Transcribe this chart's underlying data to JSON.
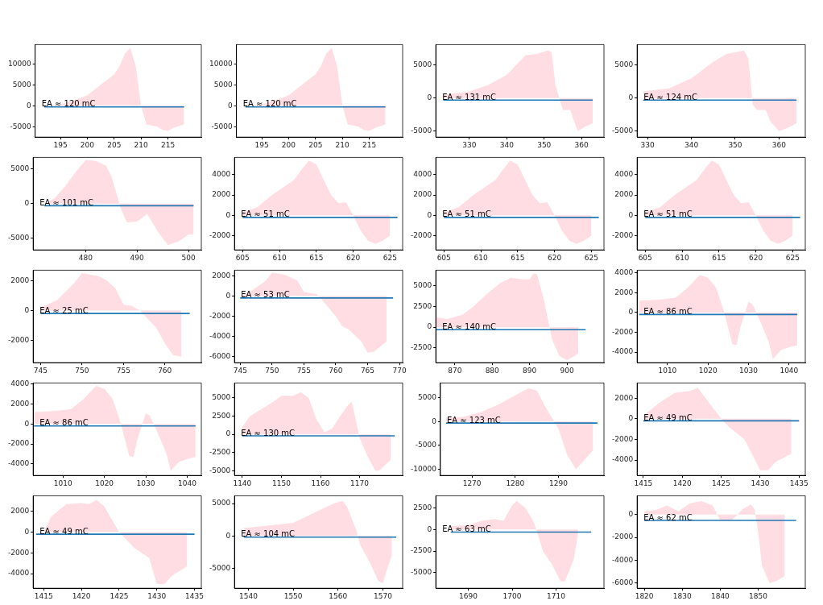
{
  "chart_data": [
    {
      "type": "area",
      "annotations": [
        "EA ≈ 120 mC"
      ],
      "xlim": [
        190.3,
        221.2
      ],
      "ylim": [
        -7500,
        14600
      ],
      "xticks": [
        195,
        200,
        205,
        210,
        215
      ],
      "yticks": [
        -5000,
        0,
        5000,
        10000
      ],
      "series": [
        {
          "type": "area",
          "color": "#ffdde2",
          "x": [
            192,
            195,
            198,
            200,
            202,
            204,
            205,
            206,
            207,
            208,
            209,
            210,
            211,
            212,
            213,
            214,
            215,
            216,
            218
          ],
          "values": [
            0,
            300,
            1500,
            2500,
            4500,
            6500,
            7500,
            9500,
            12500,
            13800,
            9500,
            0,
            -4500,
            -4700,
            -5000,
            -5800,
            -6000,
            -5300,
            -4500
          ]
        },
        {
          "type": "line",
          "color": "#1f77b4",
          "x": [
            192,
            218
          ],
          "values": [
            -300,
            -300
          ]
        }
      ]
    },
    {
      "type": "area",
      "annotations": [
        "EA ≈ 120 mC"
      ],
      "xlim": [
        190.3,
        221.2
      ],
      "ylim": [
        -7500,
        14600
      ],
      "xticks": [
        195,
        200,
        205,
        210,
        215
      ],
      "yticks": [
        -5000,
        0,
        5000,
        10000
      ],
      "series": [
        {
          "type": "area",
          "color": "#ffdde2",
          "x": [
            192,
            195,
            198,
            200,
            202,
            204,
            205,
            206,
            207,
            208,
            209,
            210,
            211,
            212,
            213,
            214,
            215,
            216,
            218
          ],
          "values": [
            0,
            300,
            1500,
            2500,
            4500,
            6500,
            7500,
            9500,
            12500,
            13800,
            9500,
            0,
            -4500,
            -4700,
            -5000,
            -5800,
            -6000,
            -5300,
            -4500
          ]
        },
        {
          "type": "line",
          "color": "#1f77b4",
          "x": [
            192,
            218
          ],
          "values": [
            -300,
            -300
          ]
        }
      ]
    },
    {
      "type": "area",
      "annotations": [
        "EA ≈ 131 mC"
      ],
      "xlim": [
        321,
        366
      ],
      "ylim": [
        -5900,
        8100
      ],
      "xticks": [
        330,
        340,
        350,
        360
      ],
      "yticks": [
        -5000,
        0,
        5000
      ],
      "series": [
        {
          "type": "area",
          "color": "#ffdde2",
          "x": [
            323,
            330,
            335,
            340,
            345,
            348,
            351,
            352,
            353,
            355,
            357,
            358,
            359,
            361,
            363
          ],
          "values": [
            500,
            1000,
            2000,
            3500,
            6500,
            6700,
            7200,
            7000,
            2000,
            -1800,
            -1800,
            -3500,
            -5000,
            -4300,
            -3800
          ]
        },
        {
          "type": "line",
          "color": "#1f77b4",
          "x": [
            323,
            363
          ],
          "values": [
            -300,
            -300
          ]
        }
      ]
    },
    {
      "type": "area",
      "annotations": [
        "EA ≈ 124 mC"
      ],
      "xlim": [
        327.6,
        366
      ],
      "ylim": [
        -5900,
        8100
      ],
      "xticks": [
        330,
        340,
        350,
        360
      ],
      "yticks": [
        -5000,
        0,
        5000
      ],
      "series": [
        {
          "type": "area",
          "color": "#ffdde2",
          "x": [
            329,
            335,
            340,
            345,
            348,
            352,
            353,
            354,
            355,
            357,
            358,
            360,
            362,
            364
          ],
          "values": [
            1000,
            1500,
            3000,
            5500,
            6700,
            7200,
            6000,
            -1000,
            -1800,
            -1800,
            -3500,
            -5000,
            -4500,
            -3800
          ]
        },
        {
          "type": "line",
          "color": "#1f77b4",
          "x": [
            329,
            364
          ],
          "values": [
            -300,
            -300
          ]
        }
      ]
    },
    {
      "type": "area",
      "annotations": [
        "EA ≈ 101 mC"
      ],
      "xlim": [
        469.8,
        502.5
      ],
      "ylim": [
        -6700,
        6700
      ],
      "xticks": [
        480,
        490,
        500
      ],
      "yticks": [
        -5000,
        0,
        5000
      ],
      "series": [
        {
          "type": "area",
          "color": "#ffdde2",
          "x": [
            472,
            474,
            476,
            478,
            480,
            482,
            484,
            485,
            486,
            487,
            488,
            490,
            492,
            494,
            496,
            498,
            500,
            501
          ],
          "values": [
            0,
            800,
            2500,
            4500,
            6300,
            6200,
            5500,
            4000,
            1500,
            -1000,
            -2700,
            -2600,
            -1500,
            -4000,
            -6000,
            -5500,
            -4500,
            -4500
          ]
        },
        {
          "type": "line",
          "color": "#1f77b4",
          "x": [
            472,
            501
          ],
          "values": [
            -300,
            -300
          ]
        }
      ]
    },
    {
      "type": "area",
      "annotations": [
        "EA ≈ 51 mC"
      ],
      "xlim": [
        603.9,
        626.7
      ],
      "ylim": [
        -3400,
        5700
      ],
      "xticks": [
        605,
        610,
        615,
        620,
        625
      ],
      "yticks": [
        -2000,
        0,
        2000,
        4000
      ],
      "series": [
        {
          "type": "area",
          "color": "#ffdde2",
          "x": [
            605,
            607,
            609,
            611,
            612,
            613,
            614,
            615,
            616,
            617,
            618,
            619,
            620,
            621,
            622,
            623,
            624,
            625
          ],
          "values": [
            300,
            800,
            2000,
            3000,
            3500,
            4500,
            5400,
            5000,
            3500,
            2000,
            1200,
            1300,
            0,
            -1500,
            -2500,
            -2800,
            -2500,
            -2000
          ]
        },
        {
          "type": "line",
          "color": "#1f77b4",
          "x": [
            605,
            626
          ],
          "values": [
            -200,
            -200
          ]
        }
      ]
    },
    {
      "type": "area",
      "annotations": [
        "EA ≈ 51 mC"
      ],
      "xlim": [
        603.9,
        626.7
      ],
      "ylim": [
        -3400,
        5700
      ],
      "xticks": [
        605,
        610,
        615,
        620,
        625
      ],
      "yticks": [
        -2000,
        0,
        2000,
        4000
      ],
      "series": [
        {
          "type": "area",
          "color": "#ffdde2",
          "x": [
            605,
            607,
            609,
            611,
            612,
            613,
            614,
            615,
            616,
            617,
            618,
            619,
            620,
            621,
            622,
            623,
            624,
            625
          ],
          "values": [
            300,
            800,
            2000,
            3000,
            3500,
            4500,
            5400,
            5000,
            3500,
            2000,
            1200,
            1300,
            0,
            -1500,
            -2500,
            -2800,
            -2500,
            -2000
          ]
        },
        {
          "type": "line",
          "color": "#1f77b4",
          "x": [
            605,
            626
          ],
          "values": [
            -200,
            -200
          ]
        }
      ]
    },
    {
      "type": "area",
      "annotations": [
        "EA ≈ 51 mC"
      ],
      "xlim": [
        603.9,
        626.7
      ],
      "ylim": [
        -3400,
        5700
      ],
      "xticks": [
        605,
        610,
        615,
        620,
        625
      ],
      "yticks": [
        -2000,
        0,
        2000,
        4000
      ],
      "series": [
        {
          "type": "area",
          "color": "#ffdde2",
          "x": [
            605,
            607,
            609,
            611,
            612,
            613,
            614,
            615,
            616,
            617,
            618,
            619,
            620,
            621,
            622,
            623,
            624,
            625
          ],
          "values": [
            300,
            800,
            2000,
            3000,
            3500,
            4500,
            5400,
            5000,
            3500,
            2000,
            1200,
            1300,
            0,
            -1500,
            -2500,
            -2800,
            -2500,
            -2000
          ]
        },
        {
          "type": "line",
          "color": "#1f77b4",
          "x": [
            605,
            626
          ],
          "values": [
            -200,
            -200
          ]
        }
      ]
    },
    {
      "type": "area",
      "annotations": [
        "EA ≈ 25 mC"
      ],
      "xlim": [
        744.1,
        764.4
      ],
      "ylim": [
        -3500,
        2700
      ],
      "xticks": [
        745,
        750,
        755,
        760
      ],
      "yticks": [
        -2000,
        0,
        2000
      ],
      "series": [
        {
          "type": "area",
          "color": "#ffdde2",
          "x": [
            745,
            747,
            749,
            750,
            752,
            753,
            754,
            755,
            756,
            757,
            758,
            759,
            760,
            761,
            762
          ],
          "values": [
            200,
            700,
            1800,
            2500,
            2300,
            2000,
            1500,
            400,
            300,
            0,
            -600,
            -1200,
            -2200,
            -3000,
            -3100
          ]
        },
        {
          "type": "line",
          "color": "#1f77b4",
          "x": [
            745,
            763
          ],
          "values": [
            -200,
            -200
          ]
        }
      ]
    },
    {
      "type": "area",
      "annotations": [
        "EA ≈ 53 mC"
      ],
      "xlim": [
        744.1,
        770.5
      ],
      "ylim": [
        -6600,
        2550
      ],
      "xticks": [
        745,
        750,
        755,
        760,
        765,
        770
      ],
      "yticks": [
        -6000,
        -4000,
        -2000,
        0,
        2000
      ],
      "series": [
        {
          "type": "area",
          "color": "#ffdde2",
          "x": [
            745,
            747,
            749,
            750,
            752,
            754,
            755,
            757,
            758,
            760,
            761,
            762,
            764,
            765,
            766,
            768
          ],
          "values": [
            0,
            600,
            1500,
            2300,
            2100,
            1500,
            400,
            200,
            -500,
            -2000,
            -3000,
            -3300,
            -4500,
            -5600,
            -5500,
            -4500
          ]
        },
        {
          "type": "line",
          "color": "#1f77b4",
          "x": [
            745,
            769
          ],
          "values": [
            -200,
            -200
          ]
        }
      ]
    },
    {
      "type": "area",
      "annotations": [
        "EA ≈ 140 mC"
      ],
      "xlim": [
        864.9,
        909.9
      ],
      "ylim": [
        -4300,
        6900
      ],
      "xticks": [
        870,
        880,
        890,
        900
      ],
      "yticks": [
        -2500,
        0,
        2500,
        5000
      ],
      "series": [
        {
          "type": "area",
          "color": "#ffdde2",
          "x": [
            865,
            868,
            872,
            875,
            878,
            882,
            885,
            888,
            890,
            891,
            892,
            894,
            896,
            898,
            900,
            902,
            903
          ],
          "values": [
            1200,
            1000,
            1500,
            2500,
            3800,
            5300,
            6000,
            5800,
            5800,
            6500,
            6400,
            3000,
            -1500,
            -3500,
            -4000,
            -3500,
            -3200
          ]
        },
        {
          "type": "line",
          "color": "#1f77b4",
          "x": [
            865,
            905
          ],
          "values": [
            -300,
            -300
          ]
        }
      ]
    },
    {
      "type": "area",
      "annotations": [
        "EA ≈ 86 mC"
      ],
      "xlim": [
        1002.5,
        1044
      ],
      "ylim": [
        -5070,
        4270
      ],
      "xticks": [
        1010,
        1020,
        1030,
        1040
      ],
      "yticks": [
        -4000,
        -2000,
        0,
        2000,
        4000
      ],
      "series": [
        {
          "type": "area",
          "color": "#ffdde2",
          "x": [
            1003,
            1008,
            1012,
            1015,
            1018,
            1020,
            1022,
            1024,
            1026,
            1027,
            1028,
            1030,
            1031,
            1033,
            1035,
            1036,
            1038,
            1040,
            1042
          ],
          "values": [
            1200,
            1300,
            1500,
            2500,
            3800,
            3500,
            2500,
            0,
            -3200,
            -3300,
            -1500,
            1100,
            800,
            -1000,
            -3000,
            -4700,
            -3800,
            -3500,
            -3300
          ]
        },
        {
          "type": "line",
          "color": "#1f77b4",
          "x": [
            1003,
            1042
          ],
          "values": [
            -200,
            -200
          ]
        }
      ]
    },
    {
      "type": "area",
      "annotations": [
        "EA ≈ 86 mC"
      ],
      "xlim": [
        1002.8,
        1043.4
      ],
      "ylim": [
        -5150,
        4100
      ],
      "xticks": [
        1010,
        1020,
        1030,
        1040
      ],
      "yticks": [
        -4000,
        -2000,
        0,
        2000,
        4000
      ],
      "series": [
        {
          "type": "area",
          "color": "#ffdde2",
          "x": [
            1003,
            1008,
            1012,
            1015,
            1018,
            1020,
            1022,
            1024,
            1026,
            1027,
            1028,
            1030,
            1031,
            1033,
            1035,
            1036,
            1038,
            1040,
            1042
          ],
          "values": [
            1200,
            1300,
            1500,
            2500,
            3800,
            3500,
            2500,
            0,
            -3200,
            -3300,
            -1500,
            1100,
            800,
            -1000,
            -3000,
            -4700,
            -3800,
            -3500,
            -3300
          ]
        },
        {
          "type": "line",
          "color": "#1f77b4",
          "x": [
            1003,
            1042
          ],
          "values": [
            -200,
            -200
          ]
        }
      ]
    },
    {
      "type": "area",
      "annotations": [
        "EA ≈ 130 mC"
      ],
      "xlim": [
        1138,
        1181
      ],
      "ylim": [
        -5650,
        7050
      ],
      "xticks": [
        1140,
        1150,
        1160,
        1170
      ],
      "yticks": [
        -5000,
        -2500,
        0,
        2500,
        5000
      ],
      "series": [
        {
          "type": "area",
          "color": "#ffdde2",
          "x": [
            1140,
            1142,
            1145,
            1148,
            1150,
            1153,
            1155,
            1157,
            1159,
            1161,
            1163,
            1165,
            1167,
            1168,
            1169,
            1170,
            1172,
            1174,
            1175,
            1177,
            1178
          ],
          "values": [
            1000,
            2500,
            3500,
            4500,
            5300,
            5300,
            5800,
            5000,
            2000,
            300,
            800,
            2500,
            4000,
            4500,
            2000,
            -500,
            -3000,
            -5000,
            -5000,
            -4000,
            -3500
          ]
        },
        {
          "type": "line",
          "color": "#1f77b4",
          "x": [
            1140,
            1179
          ],
          "values": [
            -200,
            -200
          ]
        }
      ]
    },
    {
      "type": "area",
      "annotations": [
        "EA ≈ 123 mC"
      ],
      "xlim": [
        1262.7,
        1300.5
      ],
      "ylim": [
        -11300,
        8100
      ],
      "xticks": [
        1270,
        1280,
        1290
      ],
      "yticks": [
        -10000,
        -5000,
        0,
        5000
      ],
      "series": [
        {
          "type": "area",
          "color": "#ffdde2",
          "x": [
            1264,
            1268,
            1272,
            1276,
            1280,
            1283,
            1285,
            1287,
            1289,
            1290,
            1292,
            1294,
            1296,
            1298
          ],
          "values": [
            800,
            1000,
            2000,
            3500,
            5500,
            7000,
            6500,
            3000,
            0,
            -1500,
            -7000,
            -10000,
            -8000,
            -6000
          ]
        },
        {
          "type": "line",
          "color": "#1f77b4",
          "x": [
            1264,
            1299
          ],
          "values": [
            -300,
            -300
          ]
        }
      ]
    },
    {
      "type": "area",
      "annotations": [
        "EA ≈ 49 mC"
      ],
      "xlim": [
        1414.2,
        1435.8
      ],
      "ylim": [
        -5500,
        3470
      ],
      "xticks": [
        1415,
        1420,
        1425,
        1430,
        1435
      ],
      "yticks": [
        -4000,
        -2000,
        0,
        2000
      ],
      "series": [
        {
          "type": "area",
          "color": "#ffdde2",
          "x": [
            1415,
            1417,
            1419,
            1421,
            1422,
            1423,
            1425,
            1426,
            1428,
            1429,
            1430,
            1431,
            1432,
            1434
          ],
          "values": [
            300,
            1500,
            2500,
            2700,
            3000,
            2000,
            0,
            -800,
            -2000,
            -3500,
            -5000,
            -5000,
            -4200,
            -3400
          ]
        },
        {
          "type": "line",
          "color": "#1f77b4",
          "x": [
            1415,
            1435
          ],
          "values": [
            -200,
            -200
          ]
        }
      ]
    },
    {
      "type": "area",
      "annotations": [
        "EA ≈ 49 mC"
      ],
      "xlim": [
        1413.6,
        1435.9
      ],
      "ylim": [
        -5400,
        3500
      ],
      "xticks": [
        1415,
        1420,
        1425,
        1430,
        1435
      ],
      "yticks": [
        -4000,
        -2000,
        0,
        2000
      ],
      "series": [
        {
          "type": "area",
          "color": "#ffdde2",
          "x": [
            1415,
            1416,
            1418,
            1420,
            1421,
            1422,
            1423,
            1425,
            1427,
            1429,
            1430,
            1431,
            1432,
            1434
          ],
          "values": [
            0,
            1500,
            2700,
            2800,
            2700,
            3100,
            2500,
            0,
            -1500,
            -2500,
            -5000,
            -5000,
            -4200,
            -3300
          ]
        },
        {
          "type": "line",
          "color": "#1f77b4",
          "x": [
            1414,
            1435
          ],
          "values": [
            -200,
            -200
          ]
        }
      ]
    },
    {
      "type": "area",
      "annotations": [
        "EA ≈ 104 mC"
      ],
      "xlim": [
        1536.9,
        1574.4
      ],
      "ylim": [
        -8100,
        6200
      ],
      "xticks": [
        1540,
        1550,
        1560,
        1570
      ],
      "yticks": [
        -5000,
        0,
        5000
      ],
      "series": [
        {
          "type": "area",
          "color": "#ffdde2",
          "x": [
            1539,
            1543,
            1547,
            1550,
            1553,
            1556,
            1559,
            1561,
            1562,
            1564,
            1565,
            1567,
            1569,
            1570,
            1571,
            1572
          ],
          "values": [
            1200,
            1500,
            1800,
            2000,
            3000,
            4000,
            5000,
            5400,
            4500,
            1000,
            -1500,
            -4000,
            -7000,
            -7300,
            -5000,
            -3000
          ]
        },
        {
          "type": "line",
          "color": "#1f77b4",
          "x": [
            1539,
            1573
          ],
          "values": [
            -200,
            -200
          ]
        }
      ]
    },
    {
      "type": "area",
      "annotations": [
        "EA ≈ 63 mC"
      ],
      "xlim": [
        1682.6,
        1720.9
      ],
      "ylim": [
        -6800,
        3900
      ],
      "xticks": [
        1690,
        1700,
        1710
      ],
      "yticks": [
        -5000,
        -2500,
        0,
        2500
      ],
      "series": [
        {
          "type": "area",
          "color": "#ffdde2",
          "x": [
            1686,
            1690,
            1693,
            1696,
            1698,
            1700,
            1701,
            1703,
            1705,
            1707,
            1709,
            1711,
            1712,
            1714,
            1715
          ],
          "values": [
            400,
            500,
            1000,
            1200,
            1000,
            2800,
            3300,
            2500,
            800,
            -2500,
            -4000,
            -6000,
            -6000,
            -3500,
            -500
          ]
        },
        {
          "type": "line",
          "color": "#1f77b4",
          "x": [
            1686,
            1718
          ],
          "values": [
            -300,
            -300
          ]
        }
      ]
    },
    {
      "type": "area",
      "annotations": [
        "EA ≈ 62 mC"
      ],
      "xlim": [
        1818.1,
        1862.4
      ],
      "ylim": [
        -6460,
        1660
      ],
      "xticks": [
        1820,
        1830,
        1840,
        1850
      ],
      "yticks": [
        -6000,
        -4000,
        -2000,
        0
      ],
      "series": [
        {
          "type": "area",
          "color": "#ffdde2",
          "x": [
            1820,
            1823,
            1826,
            1829,
            1832,
            1835,
            1838,
            1840,
            1843,
            1846,
            1848,
            1849,
            1850,
            1851,
            1853,
            1855,
            1857
          ],
          "values": [
            300,
            400,
            800,
            300,
            1000,
            1200,
            800,
            -500,
            -500,
            500,
            900,
            500,
            -1500,
            -4500,
            -6000,
            -5800,
            -5400
          ]
        },
        {
          "type": "line",
          "color": "#1f77b4",
          "x": [
            1820,
            1860
          ],
          "values": [
            -500,
            -500
          ]
        }
      ]
    }
  ]
}
